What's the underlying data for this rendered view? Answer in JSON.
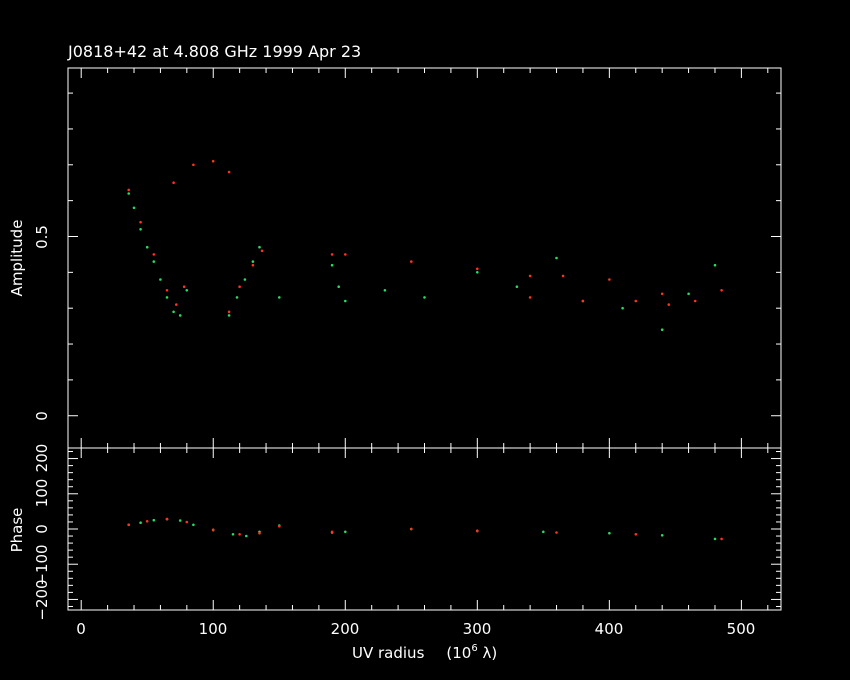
{
  "chart_data": {
    "type": "scatter",
    "title": "J0818+42 at 4.808 GHz 1999 Apr 23",
    "xlabel_main": "UV radius",
    "xlabel_units": "(10",
    "xlabel_exp": "6",
    "xlabel_sym": " λ)",
    "x_ticks": [
      "0",
      "100",
      "200",
      "300",
      "400",
      "500"
    ],
    "xlim": [
      -10,
      530
    ],
    "panels": [
      {
        "ylabel": "Amplitude",
        "y_ticks": [
          "0",
          "0.5"
        ],
        "ylim": [
          -0.09,
          0.97
        ]
      },
      {
        "ylabel": "Phase",
        "y_ticks": [
          "−200",
          "−100",
          "0",
          "100",
          "200"
        ],
        "ylim": [
          -230,
          230
        ]
      }
    ],
    "colors": {
      "data": "#22dd66",
      "model": "#ff3020",
      "axes": "#ffffff",
      "background": "#000000"
    },
    "amplitude_data": [
      [
        36,
        0.62
      ],
      [
        40,
        0.58
      ],
      [
        45,
        0.52
      ],
      [
        50,
        0.47
      ],
      [
        55,
        0.43
      ],
      [
        60,
        0.38
      ],
      [
        65,
        0.33
      ],
      [
        70,
        0.29
      ],
      [
        75,
        0.28
      ],
      [
        80,
        0.35
      ],
      [
        112,
        0.28
      ],
      [
        118,
        0.33
      ],
      [
        124,
        0.38
      ],
      [
        130,
        0.43
      ],
      [
        135,
        0.47
      ],
      [
        150,
        0.33
      ],
      [
        190,
        0.42
      ],
      [
        195,
        0.36
      ],
      [
        200,
        0.32
      ],
      [
        230,
        0.35
      ],
      [
        260,
        0.33
      ],
      [
        300,
        0.4
      ],
      [
        330,
        0.36
      ],
      [
        360,
        0.44
      ],
      [
        380,
        0.32
      ],
      [
        410,
        0.3
      ],
      [
        440,
        0.24
      ],
      [
        460,
        0.34
      ],
      [
        480,
        0.42
      ]
    ],
    "amplitude_model": [
      [
        36,
        0.63
      ],
      [
        45,
        0.54
      ],
      [
        55,
        0.45
      ],
      [
        65,
        0.35
      ],
      [
        72,
        0.31
      ],
      [
        78,
        0.36
      ],
      [
        70,
        0.65
      ],
      [
        85,
        0.7
      ],
      [
        100,
        0.71
      ],
      [
        112,
        0.68
      ],
      [
        112,
        0.29
      ],
      [
        120,
        0.36
      ],
      [
        130,
        0.42
      ],
      [
        137,
        0.46
      ],
      [
        190,
        0.45
      ],
      [
        200,
        0.45
      ],
      [
        250,
        0.43
      ],
      [
        300,
        0.41
      ],
      [
        340,
        0.39
      ],
      [
        365,
        0.39
      ],
      [
        340,
        0.33
      ],
      [
        380,
        0.32
      ],
      [
        420,
        0.32
      ],
      [
        445,
        0.31
      ],
      [
        400,
        0.38
      ],
      [
        440,
        0.34
      ],
      [
        465,
        0.32
      ],
      [
        485,
        0.35
      ]
    ],
    "phase_data": [
      [
        36,
        12
      ],
      [
        45,
        18
      ],
      [
        55,
        25
      ],
      [
        65,
        28
      ],
      [
        75,
        24
      ],
      [
        85,
        12
      ],
      [
        100,
        -3
      ],
      [
        115,
        -15
      ],
      [
        125,
        -20
      ],
      [
        135,
        -8
      ],
      [
        150,
        10
      ],
      [
        190,
        -10
      ],
      [
        200,
        -8
      ],
      [
        250,
        0
      ],
      [
        300,
        -5
      ],
      [
        350,
        -8
      ],
      [
        400,
        -12
      ],
      [
        440,
        -18
      ],
      [
        480,
        -28
      ]
    ],
    "phase_model": [
      [
        36,
        12
      ],
      [
        50,
        22
      ],
      [
        65,
        28
      ],
      [
        80,
        20
      ],
      [
        100,
        -2
      ],
      [
        120,
        -15
      ],
      [
        135,
        -12
      ],
      [
        150,
        8
      ],
      [
        190,
        -8
      ],
      [
        250,
        0
      ],
      [
        300,
        -6
      ],
      [
        360,
        -10
      ],
      [
        420,
        -15
      ],
      [
        485,
        -28
      ]
    ]
  }
}
